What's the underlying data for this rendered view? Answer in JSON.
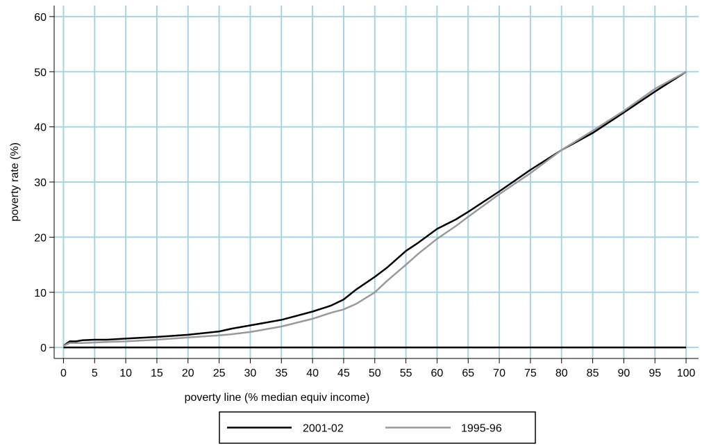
{
  "chart_data": {
    "type": "line",
    "title": "",
    "xlabel": "poverty line (% median equiv income)",
    "ylabel": "poverty rate (%)",
    "xlim": [
      -1.5,
      102
    ],
    "ylim": [
      -2,
      62
    ],
    "xticks": [
      0,
      5,
      10,
      15,
      20,
      25,
      30,
      35,
      40,
      45,
      50,
      55,
      60,
      65,
      70,
      75,
      80,
      85,
      90,
      95,
      100
    ],
    "yticks": [
      0,
      10,
      20,
      30,
      40,
      50,
      60
    ],
    "grid": true,
    "grid_color": "#a8d3e0",
    "legend_position": "bottom",
    "series": [
      {
        "name": "2001-02",
        "color": "#000000",
        "x": [
          0,
          1,
          2,
          3,
          5,
          7,
          10,
          15,
          20,
          25,
          27,
          30,
          35,
          40,
          43,
          45,
          47,
          50,
          52,
          55,
          57,
          60,
          63,
          65,
          70,
          75,
          80,
          85,
          90,
          95,
          100
        ],
        "y": [
          0.3,
          1.1,
          1.1,
          1.3,
          1.4,
          1.4,
          1.6,
          1.9,
          2.3,
          2.9,
          3.4,
          4.0,
          5.0,
          6.5,
          7.6,
          8.7,
          10.5,
          12.8,
          14.5,
          17.5,
          19.0,
          21.5,
          23.2,
          24.6,
          28.3,
          32.2,
          35.8,
          38.9,
          42.6,
          46.4,
          50.0
        ]
      },
      {
        "name": "1995-96",
        "color": "#999999",
        "x": [
          0,
          1,
          2,
          3,
          5,
          7,
          10,
          15,
          20,
          25,
          27,
          30,
          35,
          40,
          43,
          45,
          47,
          50,
          52,
          55,
          57,
          60,
          63,
          65,
          70,
          75,
          80,
          85,
          90,
          95,
          100
        ],
        "y": [
          0.3,
          0.8,
          0.8,
          0.8,
          0.9,
          1.0,
          1.1,
          1.4,
          1.8,
          2.2,
          2.4,
          2.8,
          3.8,
          5.2,
          6.3,
          6.9,
          7.9,
          10.0,
          12.1,
          15.0,
          17.0,
          19.7,
          22.0,
          23.7,
          27.8,
          31.6,
          35.8,
          39.3,
          42.9,
          46.9,
          50.0
        ]
      },
      {
        "name": "",
        "color": "#000000",
        "x": [
          0,
          100
        ],
        "y": [
          0,
          0
        ]
      }
    ]
  },
  "legend": {
    "items": [
      {
        "label": "2001-02",
        "color": "#000000"
      },
      {
        "label": "1995-96",
        "color": "#999999"
      }
    ]
  }
}
